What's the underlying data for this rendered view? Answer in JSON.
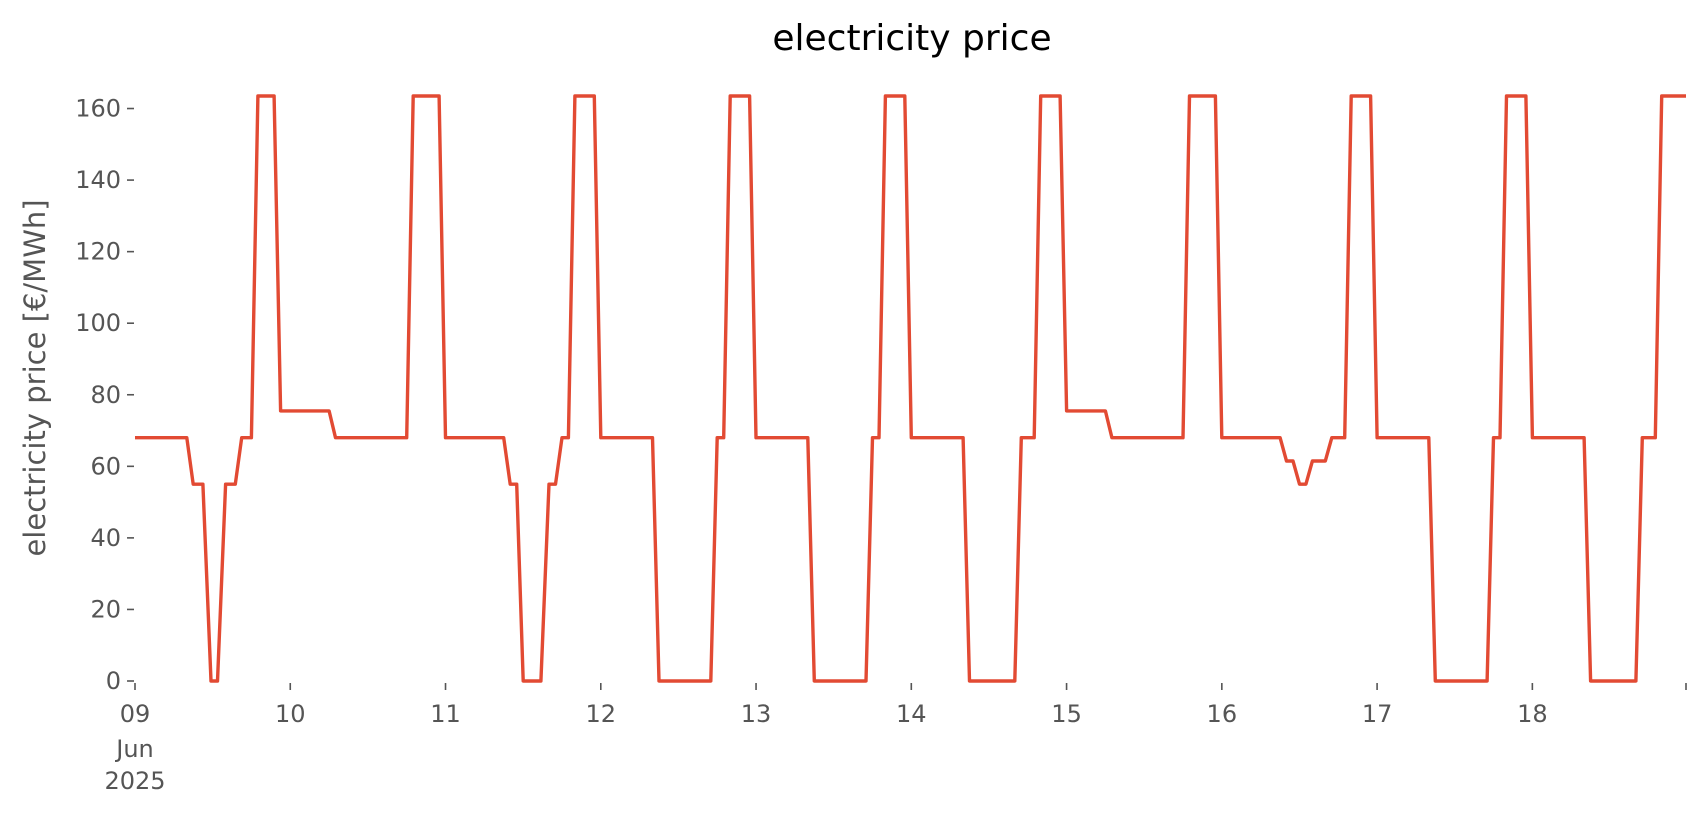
{
  "chart_data": {
    "type": "line",
    "title": "electricity price",
    "xlabel": "",
    "ylabel": "electricity price [€/MWh]",
    "ylim": [
      0,
      163.5
    ],
    "xlim": [
      "2025-06-09T00:00",
      "2025-06-18T23:45"
    ],
    "grid": false,
    "y_ticks": [
      0,
      20,
      40,
      60,
      80,
      100,
      120,
      140,
      160
    ],
    "x_ticks": [
      {
        "date": "2025-06-09T00:00",
        "label": "09",
        "sublabels": [
          "Jun",
          "2025"
        ]
      },
      {
        "date": "2025-06-10T00:00",
        "label": "10"
      },
      {
        "date": "2025-06-11T00:00",
        "label": "11"
      },
      {
        "date": "2025-06-12T00:00",
        "label": "12"
      },
      {
        "date": "2025-06-13T00:00",
        "label": "13"
      },
      {
        "date": "2025-06-14T00:00",
        "label": "14"
      },
      {
        "date": "2025-06-15T00:00",
        "label": "15"
      },
      {
        "date": "2025-06-16T00:00",
        "label": "16"
      },
      {
        "date": "2025-06-17T00:00",
        "label": "17"
      },
      {
        "date": "2025-06-18T00:00",
        "label": "18"
      }
    ],
    "series": [
      {
        "color": "#e24a33",
        "points": [
          [
            "2025-06-09T00:00",
            68
          ],
          [
            "2025-06-09T08:00",
            68
          ],
          [
            "2025-06-09T09:00",
            55
          ],
          [
            "2025-06-09T10:30",
            55
          ],
          [
            "2025-06-09T11:45",
            0
          ],
          [
            "2025-06-09T12:45",
            0
          ],
          [
            "2025-06-09T14:00",
            55
          ],
          [
            "2025-06-09T15:30",
            55
          ],
          [
            "2025-06-09T16:30",
            68
          ],
          [
            "2025-06-09T18:00",
            68
          ],
          [
            "2025-06-09T19:00",
            163.5
          ],
          [
            "2025-06-09T21:30",
            163.5
          ],
          [
            "2025-06-09T22:30",
            75.5
          ],
          [
            "2025-06-10T06:00",
            75.5
          ],
          [
            "2025-06-10T07:00",
            68
          ],
          [
            "2025-06-10T18:00",
            68
          ],
          [
            "2025-06-10T19:00",
            163.5
          ],
          [
            "2025-06-10T23:00",
            163.5
          ],
          [
            "2025-06-11T00:00",
            68
          ],
          [
            "2025-06-11T09:00",
            68
          ],
          [
            "2025-06-11T10:00",
            55
          ],
          [
            "2025-06-11T11:00",
            55
          ],
          [
            "2025-06-11T12:00",
            0
          ],
          [
            "2025-06-11T14:45",
            0
          ],
          [
            "2025-06-11T16:00",
            55
          ],
          [
            "2025-06-11T17:00",
            55
          ],
          [
            "2025-06-11T18:00",
            68
          ],
          [
            "2025-06-11T19:00",
            68
          ],
          [
            "2025-06-11T20:00",
            163.5
          ],
          [
            "2025-06-11T23:00",
            163.5
          ],
          [
            "2025-06-12T00:00",
            68
          ],
          [
            "2025-06-12T08:00",
            68
          ],
          [
            "2025-06-12T09:00",
            0
          ],
          [
            "2025-06-12T17:00",
            0
          ],
          [
            "2025-06-12T18:00",
            68
          ],
          [
            "2025-06-12T19:00",
            68
          ],
          [
            "2025-06-12T20:00",
            163.5
          ],
          [
            "2025-06-12T23:00",
            163.5
          ],
          [
            "2025-06-13T00:00",
            68
          ],
          [
            "2025-06-13T08:00",
            68
          ],
          [
            "2025-06-13T09:00",
            0
          ],
          [
            "2025-06-13T17:00",
            0
          ],
          [
            "2025-06-13T18:00",
            68
          ],
          [
            "2025-06-13T19:00",
            68
          ],
          [
            "2025-06-13T20:00",
            163.5
          ],
          [
            "2025-06-13T23:00",
            163.5
          ],
          [
            "2025-06-14T00:00",
            68
          ],
          [
            "2025-06-14T08:00",
            68
          ],
          [
            "2025-06-14T09:00",
            0
          ],
          [
            "2025-06-14T16:00",
            0
          ],
          [
            "2025-06-14T17:00",
            68
          ],
          [
            "2025-06-14T19:00",
            68
          ],
          [
            "2025-06-14T20:00",
            163.5
          ],
          [
            "2025-06-14T23:00",
            163.5
          ],
          [
            "2025-06-15T00:00",
            75.5
          ],
          [
            "2025-06-15T06:00",
            75.5
          ],
          [
            "2025-06-15T07:00",
            68
          ],
          [
            "2025-06-15T18:00",
            68
          ],
          [
            "2025-06-15T19:00",
            163.5
          ],
          [
            "2025-06-15T23:00",
            163.5
          ],
          [
            "2025-06-16T00:00",
            68
          ],
          [
            "2025-06-16T09:00",
            68
          ],
          [
            "2025-06-16T10:00",
            61.5
          ],
          [
            "2025-06-16T11:00",
            61.5
          ],
          [
            "2025-06-16T12:00",
            55
          ],
          [
            "2025-06-16T13:00",
            55
          ],
          [
            "2025-06-16T14:00",
            61.5
          ],
          [
            "2025-06-16T16:00",
            61.5
          ],
          [
            "2025-06-16T17:00",
            68
          ],
          [
            "2025-06-16T19:00",
            68
          ],
          [
            "2025-06-16T20:00",
            163.5
          ],
          [
            "2025-06-16T23:00",
            163.5
          ],
          [
            "2025-06-17T00:00",
            68
          ],
          [
            "2025-06-17T08:00",
            68
          ],
          [
            "2025-06-17T09:00",
            0
          ],
          [
            "2025-06-17T17:00",
            0
          ],
          [
            "2025-06-17T18:00",
            68
          ],
          [
            "2025-06-17T19:00",
            68
          ],
          [
            "2025-06-17T20:00",
            163.5
          ],
          [
            "2025-06-17T23:00",
            163.5
          ],
          [
            "2025-06-18T00:00",
            68
          ],
          [
            "2025-06-18T08:00",
            68
          ],
          [
            "2025-06-18T09:00",
            0
          ],
          [
            "2025-06-18T16:00",
            0
          ],
          [
            "2025-06-18T17:00",
            68
          ],
          [
            "2025-06-18T19:00",
            68
          ],
          [
            "2025-06-18T20:00",
            163.5
          ],
          [
            "2025-06-18T23:45",
            163.5
          ]
        ]
      }
    ]
  }
}
